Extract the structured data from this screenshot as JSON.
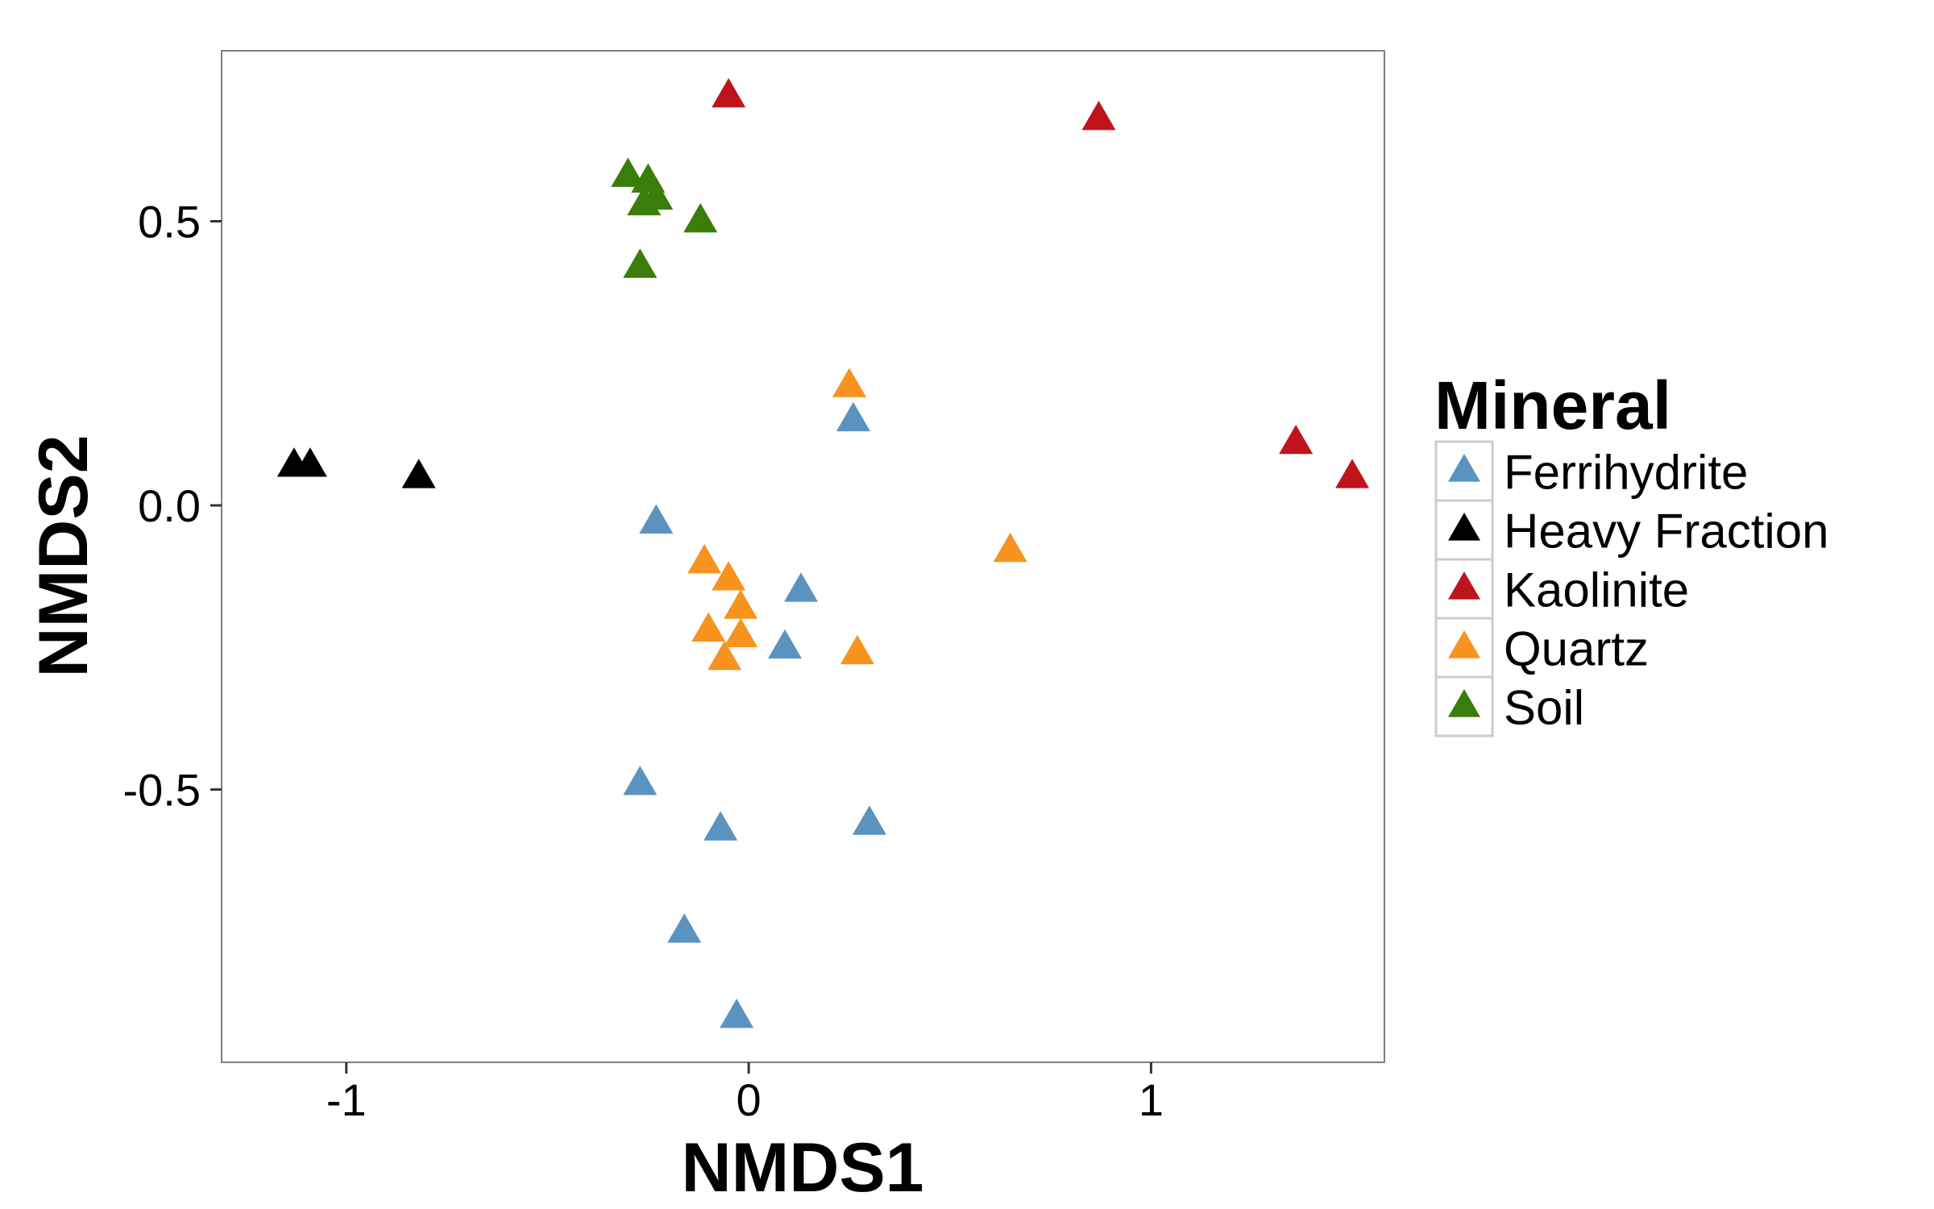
{
  "chart_data": {
    "type": "scatter",
    "title": "",
    "xlabel": "NMDS1",
    "ylabel": "NMDS2",
    "xlim": [
      -1.31,
      1.58
    ],
    "ylim": [
      -0.98,
      0.8
    ],
    "x_ticks": [
      {
        "value": -1,
        "label": "-1"
      },
      {
        "value": 0,
        "label": "0"
      },
      {
        "value": 1,
        "label": "1"
      }
    ],
    "y_ticks": [
      {
        "value": 0.5,
        "label": "0.5"
      },
      {
        "value": 0.0,
        "label": "0.0"
      },
      {
        "value": -0.5,
        "label": "-0.5"
      }
    ],
    "grid": false,
    "legend": {
      "title": "Mineral",
      "position": "right"
    },
    "marker": "triangle",
    "series": [
      {
        "name": "Ferrihydrite",
        "color": "#5b93c0",
        "points": [
          {
            "x": 0.26,
            "y": 0.15
          },
          {
            "x": -0.23,
            "y": -0.03
          },
          {
            "x": 0.13,
            "y": -0.15
          },
          {
            "x": 0.09,
            "y": -0.25
          },
          {
            "x": -0.27,
            "y": -0.49
          },
          {
            "x": -0.07,
            "y": -0.57
          },
          {
            "x": 0.3,
            "y": -0.56
          },
          {
            "x": -0.16,
            "y": -0.75
          },
          {
            "x": -0.03,
            "y": -0.9
          }
        ]
      },
      {
        "name": "Heavy Fraction",
        "color": "#000000",
        "points": [
          {
            "x": -1.13,
            "y": 0.07
          },
          {
            "x": -1.09,
            "y": 0.07
          },
          {
            "x": -0.82,
            "y": 0.05
          }
        ]
      },
      {
        "name": "Kaolinite",
        "color": "#c0141c",
        "points": [
          {
            "x": -0.05,
            "y": 0.72
          },
          {
            "x": 0.87,
            "y": 0.68
          },
          {
            "x": 1.36,
            "y": 0.11
          },
          {
            "x": 1.5,
            "y": 0.05
          }
        ]
      },
      {
        "name": "Quartz",
        "color": "#f7931e",
        "points": [
          {
            "x": 0.25,
            "y": 0.21
          },
          {
            "x": 0.65,
            "y": -0.08
          },
          {
            "x": -0.11,
            "y": -0.1
          },
          {
            "x": -0.05,
            "y": -0.13
          },
          {
            "x": -0.02,
            "y": -0.18
          },
          {
            "x": -0.1,
            "y": -0.22
          },
          {
            "x": -0.02,
            "y": -0.23
          },
          {
            "x": -0.06,
            "y": -0.27
          },
          {
            "x": 0.27,
            "y": -0.26
          }
        ]
      },
      {
        "name": "Soil",
        "color": "#3a7d0a",
        "points": [
          {
            "x": -0.3,
            "y": 0.58
          },
          {
            "x": -0.25,
            "y": 0.57
          },
          {
            "x": -0.23,
            "y": 0.54
          },
          {
            "x": -0.26,
            "y": 0.53
          },
          {
            "x": -0.12,
            "y": 0.5
          },
          {
            "x": -0.27,
            "y": 0.42
          }
        ]
      }
    ]
  }
}
